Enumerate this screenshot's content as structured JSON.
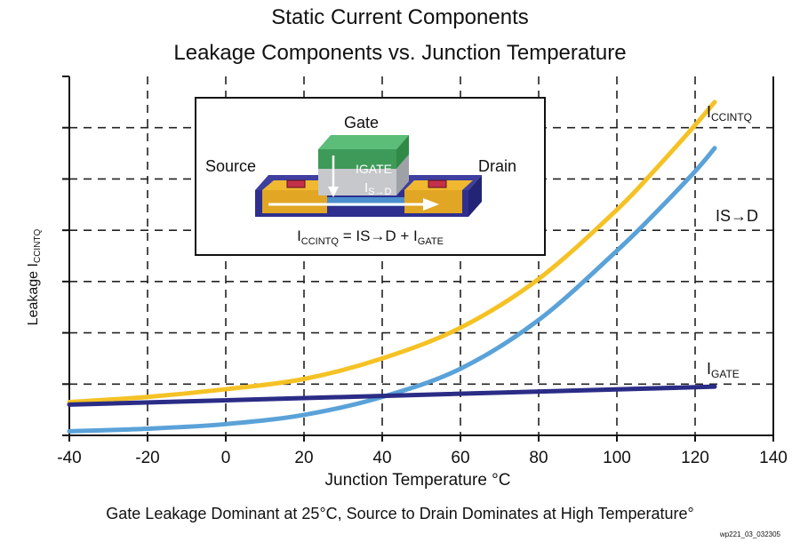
{
  "header": {
    "title": "Static Current Components",
    "subtitle": "Leakage Components vs. Junction Temperature"
  },
  "caption": "Gate Leakage Dominant at 25°C, Source to Drain Dominates at High Temperature°",
  "figure_code": "wp221_03_032305",
  "inset": {
    "gate_label": "Gate",
    "source_label": "Source",
    "drain_label": "Drain",
    "igate_label": "IGATE",
    "isd_label_main": "I",
    "isd_label_sub": "S→D",
    "equation": {
      "lhs_main": "I",
      "lhs_sub": "CCINTQ",
      "middle": " = IS→D + I",
      "rhs_sub": "GATE"
    }
  },
  "chart_data": {
    "type": "line",
    "title": "Static Current Components",
    "subtitle": "Leakage Components vs. Junction Temperature",
    "xlabel": "Junction Temperature °C",
    "ylabel_main": "Leakage I",
    "ylabel_sub": "CCINTQ",
    "xlim": [
      -40,
      140
    ],
    "xticks": [
      "-40",
      "-20",
      "0",
      "20",
      "40",
      "60",
      "80",
      "100",
      "120",
      "140"
    ],
    "ylim": [
      0,
      7
    ],
    "y_ticks_labeled": false,
    "grid": "dashed",
    "series": [
      {
        "name_main": "I",
        "name_sub": "CCINTQ",
        "color": "#f5c225",
        "x": [
          -40,
          -20,
          0,
          20,
          40,
          60,
          80,
          100,
          110,
          120,
          125
        ],
        "y": [
          0.65,
          0.75,
          0.9,
          1.1,
          1.5,
          2.1,
          3.05,
          4.4,
          5.2,
          6.05,
          6.5
        ]
      },
      {
        "name_main": "IS→D",
        "name_sub": "",
        "color": "#5aa2d8",
        "x": [
          -40,
          -20,
          0,
          20,
          40,
          60,
          80,
          100,
          110,
          120,
          125
        ],
        "y": [
          0.08,
          0.13,
          0.22,
          0.4,
          0.75,
          1.3,
          2.25,
          3.6,
          4.35,
          5.15,
          5.6
        ]
      },
      {
        "name_main": "I",
        "name_sub": "GATE",
        "color": "#2a2c86",
        "x": [
          -40,
          125
        ],
        "y": [
          0.6,
          0.95
        ]
      }
    ]
  }
}
